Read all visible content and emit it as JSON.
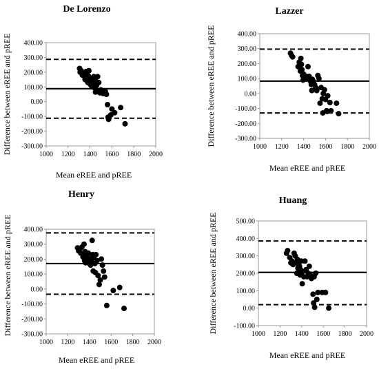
{
  "chart_data": [
    {
      "type": "scatter",
      "title": "De Lorenzo",
      "xlabel": "Mean eREE and pREE",
      "ylabel": "Difference between eREE and pREE",
      "xlim": [
        1000,
        2000
      ],
      "ylim": [
        -300,
        400
      ],
      "xticks": [
        "1000",
        "1200",
        "1400",
        "1600",
        "1800",
        "2000"
      ],
      "yticks": [
        "-300.00",
        "-200.00",
        "-100.00",
        "0.00",
        "100.00",
        "200.00",
        "300.00",
        "400.00"
      ],
      "mean_line": 88,
      "loa_upper": 287,
      "loa_lower": -112,
      "points": [
        [
          1305,
          225
        ],
        [
          1310,
          200
        ],
        [
          1320,
          210
        ],
        [
          1330,
          180
        ],
        [
          1340,
          195
        ],
        [
          1350,
          170
        ],
        [
          1355,
          150
        ],
        [
          1360,
          190
        ],
        [
          1365,
          205
        ],
        [
          1370,
          160
        ],
        [
          1375,
          140
        ],
        [
          1380,
          130
        ],
        [
          1385,
          175
        ],
        [
          1390,
          210
        ],
        [
          1395,
          150
        ],
        [
          1400,
          120
        ],
        [
          1405,
          140
        ],
        [
          1410,
          110
        ],
        [
          1415,
          160
        ],
        [
          1420,
          130
        ],
        [
          1425,
          100
        ],
        [
          1430,
          150
        ],
        [
          1435,
          170
        ],
        [
          1440,
          120
        ],
        [
          1445,
          90
        ],
        [
          1450,
          65
        ],
        [
          1455,
          140
        ],
        [
          1460,
          110
        ],
        [
          1465,
          75
        ],
        [
          1470,
          170
        ],
        [
          1480,
          130
        ],
        [
          1490,
          60
        ],
        [
          1500,
          80
        ],
        [
          1510,
          75
        ],
        [
          1520,
          55
        ],
        [
          1530,
          60
        ],
        [
          1540,
          70
        ],
        [
          1550,
          50
        ],
        [
          1560,
          -20
        ],
        [
          1565,
          -105
        ],
        [
          1570,
          -120
        ],
        [
          1590,
          -90
        ],
        [
          1600,
          -50
        ],
        [
          1625,
          -75
        ],
        [
          1680,
          -40
        ],
        [
          1720,
          -150
        ]
      ]
    },
    {
      "type": "scatter",
      "title": "Lazzer",
      "xlabel": "Mean eREE and pREE",
      "ylabel": "Difference between eREE and pREE",
      "xlim": [
        1000,
        2000
      ],
      "ylim": [
        -300,
        400
      ],
      "xticks": [
        "1000",
        "1200",
        "1400",
        "1600",
        "1800",
        "2000"
      ],
      "yticks": [
        "-300.00",
        "-200.00",
        "-100.00",
        "0.00",
        "100.00",
        "200.00",
        "300.00",
        "400.00"
      ],
      "mean_line": 83,
      "loa_upper": 297,
      "loa_lower": -130,
      "points": [
        [
          1280,
          270
        ],
        [
          1290,
          255
        ],
        [
          1300,
          245
        ],
        [
          1350,
          180
        ],
        [
          1360,
          210
        ],
        [
          1370,
          150
        ],
        [
          1375,
          235
        ],
        [
          1380,
          195
        ],
        [
          1385,
          160
        ],
        [
          1390,
          120
        ],
        [
          1395,
          90
        ],
        [
          1400,
          130
        ],
        [
          1410,
          100
        ],
        [
          1420,
          115
        ],
        [
          1430,
          100
        ],
        [
          1440,
          180
        ],
        [
          1450,
          115
        ],
        [
          1460,
          85
        ],
        [
          1470,
          60
        ],
        [
          1475,
          20
        ],
        [
          1480,
          95
        ],
        [
          1490,
          80
        ],
        [
          1500,
          60
        ],
        [
          1510,
          40
        ],
        [
          1520,
          20
        ],
        [
          1530,
          120
        ],
        [
          1540,
          100
        ],
        [
          1550,
          -65
        ],
        [
          1560,
          40
        ],
        [
          1570,
          -35
        ],
        [
          1575,
          -130
        ],
        [
          1580,
          0
        ],
        [
          1590,
          25
        ],
        [
          1600,
          -40
        ],
        [
          1610,
          -115
        ],
        [
          1615,
          -120
        ],
        [
          1620,
          -15
        ],
        [
          1640,
          -60
        ],
        [
          1650,
          -115
        ],
        [
          1700,
          -65
        ],
        [
          1720,
          -135
        ]
      ]
    },
    {
      "type": "scatter",
      "title": "Henry",
      "xlabel": "Mean eREE and pREE",
      "ylabel": "Difference between eREE and pREE",
      "xlim": [
        1000,
        2000
      ],
      "ylim": [
        -300,
        400
      ],
      "xticks": [
        "1000",
        "1200",
        "1400",
        "1600",
        "1800",
        "2000"
      ],
      "yticks": [
        "-300.00",
        "-200.00",
        "-100.00",
        "0.00",
        "100.00",
        "200.00",
        "300.00",
        "400.00"
      ],
      "mean_line": 170,
      "loa_upper": 375,
      "loa_lower": -35,
      "points": [
        [
          1290,
          275
        ],
        [
          1300,
          255
        ],
        [
          1310,
          265
        ],
        [
          1320,
          240
        ],
        [
          1330,
          280
        ],
        [
          1340,
          215
        ],
        [
          1345,
          235
        ],
        [
          1350,
          300
        ],
        [
          1355,
          190
        ],
        [
          1360,
          250
        ],
        [
          1365,
          175
        ],
        [
          1370,
          220
        ],
        [
          1375,
          195
        ],
        [
          1380,
          180
        ],
        [
          1385,
          210
        ],
        [
          1390,
          240
        ],
        [
          1395,
          200
        ],
        [
          1400,
          170
        ],
        [
          1405,
          190
        ],
        [
          1410,
          160
        ],
        [
          1415,
          205
        ],
        [
          1420,
          180
        ],
        [
          1425,
          325
        ],
        [
          1430,
          230
        ],
        [
          1435,
          120
        ],
        [
          1440,
          210
        ],
        [
          1450,
          170
        ],
        [
          1455,
          110
        ],
        [
          1460,
          230
        ],
        [
          1470,
          190
        ],
        [
          1480,
          90
        ],
        [
          1490,
          30
        ],
        [
          1500,
          60
        ],
        [
          1510,
          200
        ],
        [
          1520,
          160
        ],
        [
          1530,
          120
        ],
        [
          1540,
          80
        ],
        [
          1560,
          -110
        ],
        [
          1620,
          -10
        ],
        [
          1680,
          10
        ],
        [
          1720,
          -130
        ]
      ]
    },
    {
      "type": "scatter",
      "title": "Huang",
      "xlabel": "Mean eREE and pREE",
      "ylabel": "Difference between eREE and pREE",
      "xlim": [
        1000,
        2000
      ],
      "ylim": [
        -100,
        500
      ],
      "xticks": [
        "1000",
        "1200",
        "1400",
        "1600",
        "1800",
        "2000"
      ],
      "yticks": [
        "-100.00",
        "0.00",
        "100.00",
        "200.00",
        "300.00",
        "400.00",
        "500.00"
      ],
      "mean_line": 205,
      "loa_upper": 385,
      "loa_lower": 20,
      "points": [
        [
          1260,
          315
        ],
        [
          1270,
          330
        ],
        [
          1290,
          290
        ],
        [
          1300,
          260
        ],
        [
          1310,
          270
        ],
        [
          1320,
          250
        ],
        [
          1330,
          315
        ],
        [
          1340,
          300
        ],
        [
          1350,
          260
        ],
        [
          1355,
          200
        ],
        [
          1360,
          280
        ],
        [
          1365,
          230
        ],
        [
          1370,
          250
        ],
        [
          1375,
          210
        ],
        [
          1380,
          240
        ],
        [
          1385,
          190
        ],
        [
          1390,
          220
        ],
        [
          1395,
          270
        ],
        [
          1400,
          200
        ],
        [
          1405,
          140
        ],
        [
          1410,
          210
        ],
        [
          1420,
          180
        ],
        [
          1430,
          270
        ],
        [
          1440,
          220
        ],
        [
          1450,
          180
        ],
        [
          1460,
          200
        ],
        [
          1470,
          240
        ],
        [
          1480,
          190
        ],
        [
          1490,
          170
        ],
        [
          1500,
          180
        ],
        [
          1505,
          80
        ],
        [
          1510,
          30
        ],
        [
          1515,
          180
        ],
        [
          1520,
          5
        ],
        [
          1530,
          200
        ],
        [
          1540,
          50
        ],
        [
          1550,
          90
        ],
        [
          1590,
          90
        ],
        [
          1620,
          90
        ],
        [
          1650,
          0
        ]
      ]
    }
  ]
}
